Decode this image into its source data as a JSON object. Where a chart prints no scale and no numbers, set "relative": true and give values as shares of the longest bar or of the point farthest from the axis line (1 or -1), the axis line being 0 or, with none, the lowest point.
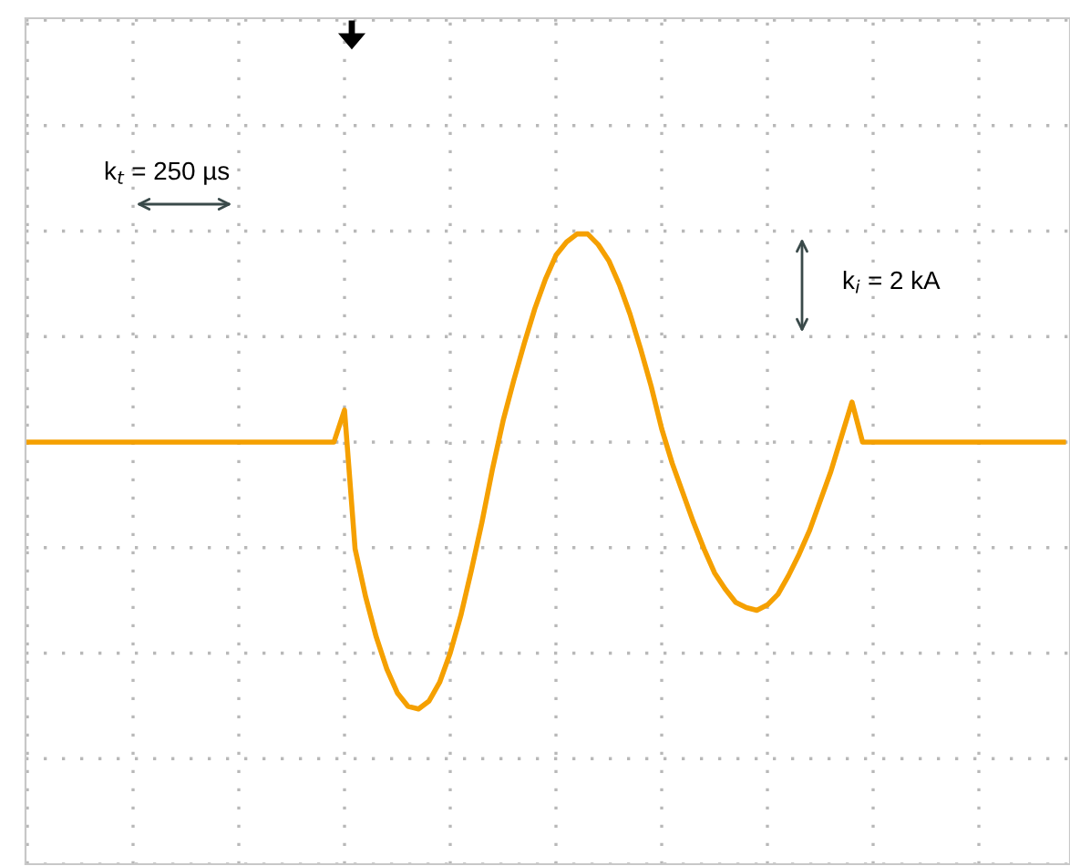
{
  "chart_data": {
    "type": "line",
    "relative": true,
    "grid": true,
    "marker": "none",
    "line_style": "solid",
    "categories": [
      null,
      null,
      null,
      null,
      null,
      null,
      null,
      null,
      null,
      null,
      null,
      null,
      null,
      null,
      null,
      null,
      null,
      null,
      null,
      null,
      null,
      null,
      null,
      null,
      null,
      null,
      null,
      null,
      null,
      null,
      null,
      null,
      null,
      null,
      null,
      null,
      null,
      null,
      null,
      null,
      null,
      null,
      null,
      null,
      null,
      null,
      null,
      null,
      null,
      null,
      null,
      null,
      null,
      null,
      null,
      null,
      null,
      null,
      null,
      null,
      null,
      null,
      null,
      null,
      null,
      null,
      null,
      null,
      null,
      null,
      null,
      null,
      null,
      null,
      null,
      null,
      null,
      null,
      null,
      null,
      null,
      null,
      null,
      null,
      null,
      null,
      null,
      null,
      null,
      null,
      null,
      null,
      null,
      null,
      null,
      null,
      null,
      null,
      null
    ],
    "series": [
      {
        "color": "#f5a000",
        "values": [
          0,
          0,
          0,
          0,
          0,
          0,
          0,
          0,
          0,
          0,
          0,
          0,
          0,
          0,
          0,
          0,
          0,
          0,
          0,
          0,
          0,
          0,
          0,
          0,
          0,
          0,
          0,
          0,
          0,
          0,
          0.12,
          -0.4,
          -0.58,
          -0.73,
          -0.85,
          -0.94,
          -0.99,
          -1.0,
          -0.97,
          -0.9,
          -0.79,
          -0.65,
          -0.48,
          -0.3,
          -0.1,
          0.08,
          0.23,
          0.37,
          0.5,
          0.61,
          0.7,
          0.75,
          0.78,
          0.78,
          0.74,
          0.68,
          0.59,
          0.48,
          0.35,
          0.21,
          0.05,
          -0.08,
          -0.19,
          -0.3,
          -0.4,
          -0.49,
          -0.55,
          -0.6,
          -0.62,
          -0.63,
          -0.61,
          -0.57,
          -0.5,
          -0.42,
          -0.33,
          -0.22,
          -0.11,
          0.02,
          0.15,
          0,
          0,
          0,
          0,
          0,
          0,
          0,
          0,
          0,
          0,
          0,
          0,
          0,
          0,
          0,
          0,
          0,
          0,
          0,
          0
        ]
      }
    ],
    "annotations": [
      "k$_{t}$ = 250 µs",
      "k$_{i}$ = 2 kA"
    ]
  }
}
